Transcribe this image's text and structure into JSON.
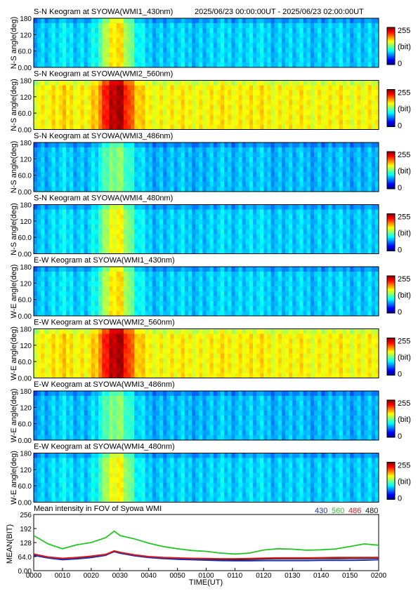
{
  "header": {
    "time_range": "2025/06/23 00:00:00UT - 2025/06/23 02:00:00UT"
  },
  "colorbar": {
    "max_label": "255",
    "unit_label": "(bit)",
    "min_label": "0"
  },
  "panels": [
    {
      "title": "S-N Keogram at SYOWA(WMI1_430nm)",
      "ylabel": "N-S angle(deg)",
      "yticks": [
        "180",
        "120",
        "60.0",
        "0.00"
      ],
      "brightness": 0.3,
      "peak": 0.65
    },
    {
      "title": "S-N Keogram at SYOWA(WMI2_560nm)",
      "ylabel": "N-S angle(deg)",
      "yticks": [
        "180",
        "120",
        "60.0",
        "0.00"
      ],
      "brightness": 0.6,
      "peak": 0.95
    },
    {
      "title": "S-N Keogram at SYOWA(WMI3_486nm)",
      "ylabel": "N-S angle(deg)",
      "yticks": [
        "180",
        "120",
        "60.0",
        "0.00"
      ],
      "brightness": 0.28,
      "peak": 0.5
    },
    {
      "title": "S-N Keogram at SYOWA(WMI4_480nm)",
      "ylabel": "N-S angle(deg)",
      "yticks": [
        "180",
        "120",
        "60.0",
        "0.00"
      ],
      "brightness": 0.3,
      "peak": 0.62
    },
    {
      "title": "E-W Keogram at SYOWA(WMI1_430nm)",
      "ylabel": "W-E angle(deg)",
      "yticks": [
        "180",
        "120",
        "60.0",
        "0.00"
      ],
      "brightness": 0.3,
      "peak": 0.65
    },
    {
      "title": "E-W Keogram at SYOWA(WMI2_560nm)",
      "ylabel": "W-E angle(deg)",
      "yticks": [
        "180",
        "120",
        "60.0",
        "0.00"
      ],
      "brightness": 0.6,
      "peak": 0.95
    },
    {
      "title": "E-W Keogram at SYOWA(WMI3_486nm)",
      "ylabel": "W-E angle(deg)",
      "yticks": [
        "180",
        "120",
        "60.0",
        "0.00"
      ],
      "brightness": 0.28,
      "peak": 0.5
    },
    {
      "title": "E-W Keogram at SYOWA(WMI4_480nm)",
      "ylabel": "W-E angle(deg)",
      "yticks": [
        "180",
        "120",
        "60.0",
        "0.00"
      ],
      "brightness": 0.3,
      "peak": 0.62
    }
  ],
  "chart_data": {
    "type": "line",
    "title": "Mean intensity in FOV of Syowa WMI",
    "xlabel": "TIME(UT)",
    "ylabel": "MEAN(BIT)",
    "x_tick_labels": [
      "0000",
      "0010",
      "0020",
      "0030",
      "0040",
      "0050",
      "0100",
      "0110",
      "0120",
      "0130",
      "0140",
      "0150",
      "0200"
    ],
    "y_tick_labels": [
      "0.00",
      "64.0",
      "128",
      "192",
      "256"
    ],
    "xlim": [
      0,
      120
    ],
    "ylim": [
      0,
      256
    ],
    "x": [
      0,
      5,
      10,
      15,
      20,
      25,
      28,
      30,
      35,
      40,
      45,
      50,
      55,
      60,
      65,
      70,
      75,
      80,
      85,
      90,
      95,
      100,
      105,
      110,
      115,
      120
    ],
    "series": [
      {
        "name": "430",
        "color": "#1c2fb0",
        "values": [
          70,
          58,
          50,
          54,
          60,
          70,
          88,
          80,
          68,
          60,
          55,
          52,
          50,
          48,
          46,
          45,
          45,
          46,
          46,
          46,
          46,
          47,
          47,
          47,
          48,
          50
        ]
      },
      {
        "name": "560",
        "color": "#22c722",
        "values": [
          160,
          122,
          100,
          118,
          128,
          150,
          180,
          160,
          145,
          125,
          110,
          100,
          92,
          88,
          80,
          76,
          80,
          94,
          100,
          98,
          93,
          95,
          99,
          110,
          122,
          116
        ]
      },
      {
        "name": "486",
        "color": "#d81818",
        "values": [
          76,
          62,
          56,
          60,
          66,
          74,
          90,
          84,
          72,
          64,
          60,
          58,
          56,
          55,
          54,
          54,
          55,
          57,
          58,
          58,
          58,
          59,
          60,
          60,
          60,
          60
        ]
      },
      {
        "name": "480",
        "color": "#111111",
        "values": [
          74,
          60,
          54,
          58,
          64,
          72,
          87,
          80,
          70,
          62,
          58,
          55,
          53,
          52,
          51,
          51,
          52,
          54,
          55,
          55,
          55,
          56,
          56,
          57,
          57,
          58
        ]
      }
    ]
  }
}
